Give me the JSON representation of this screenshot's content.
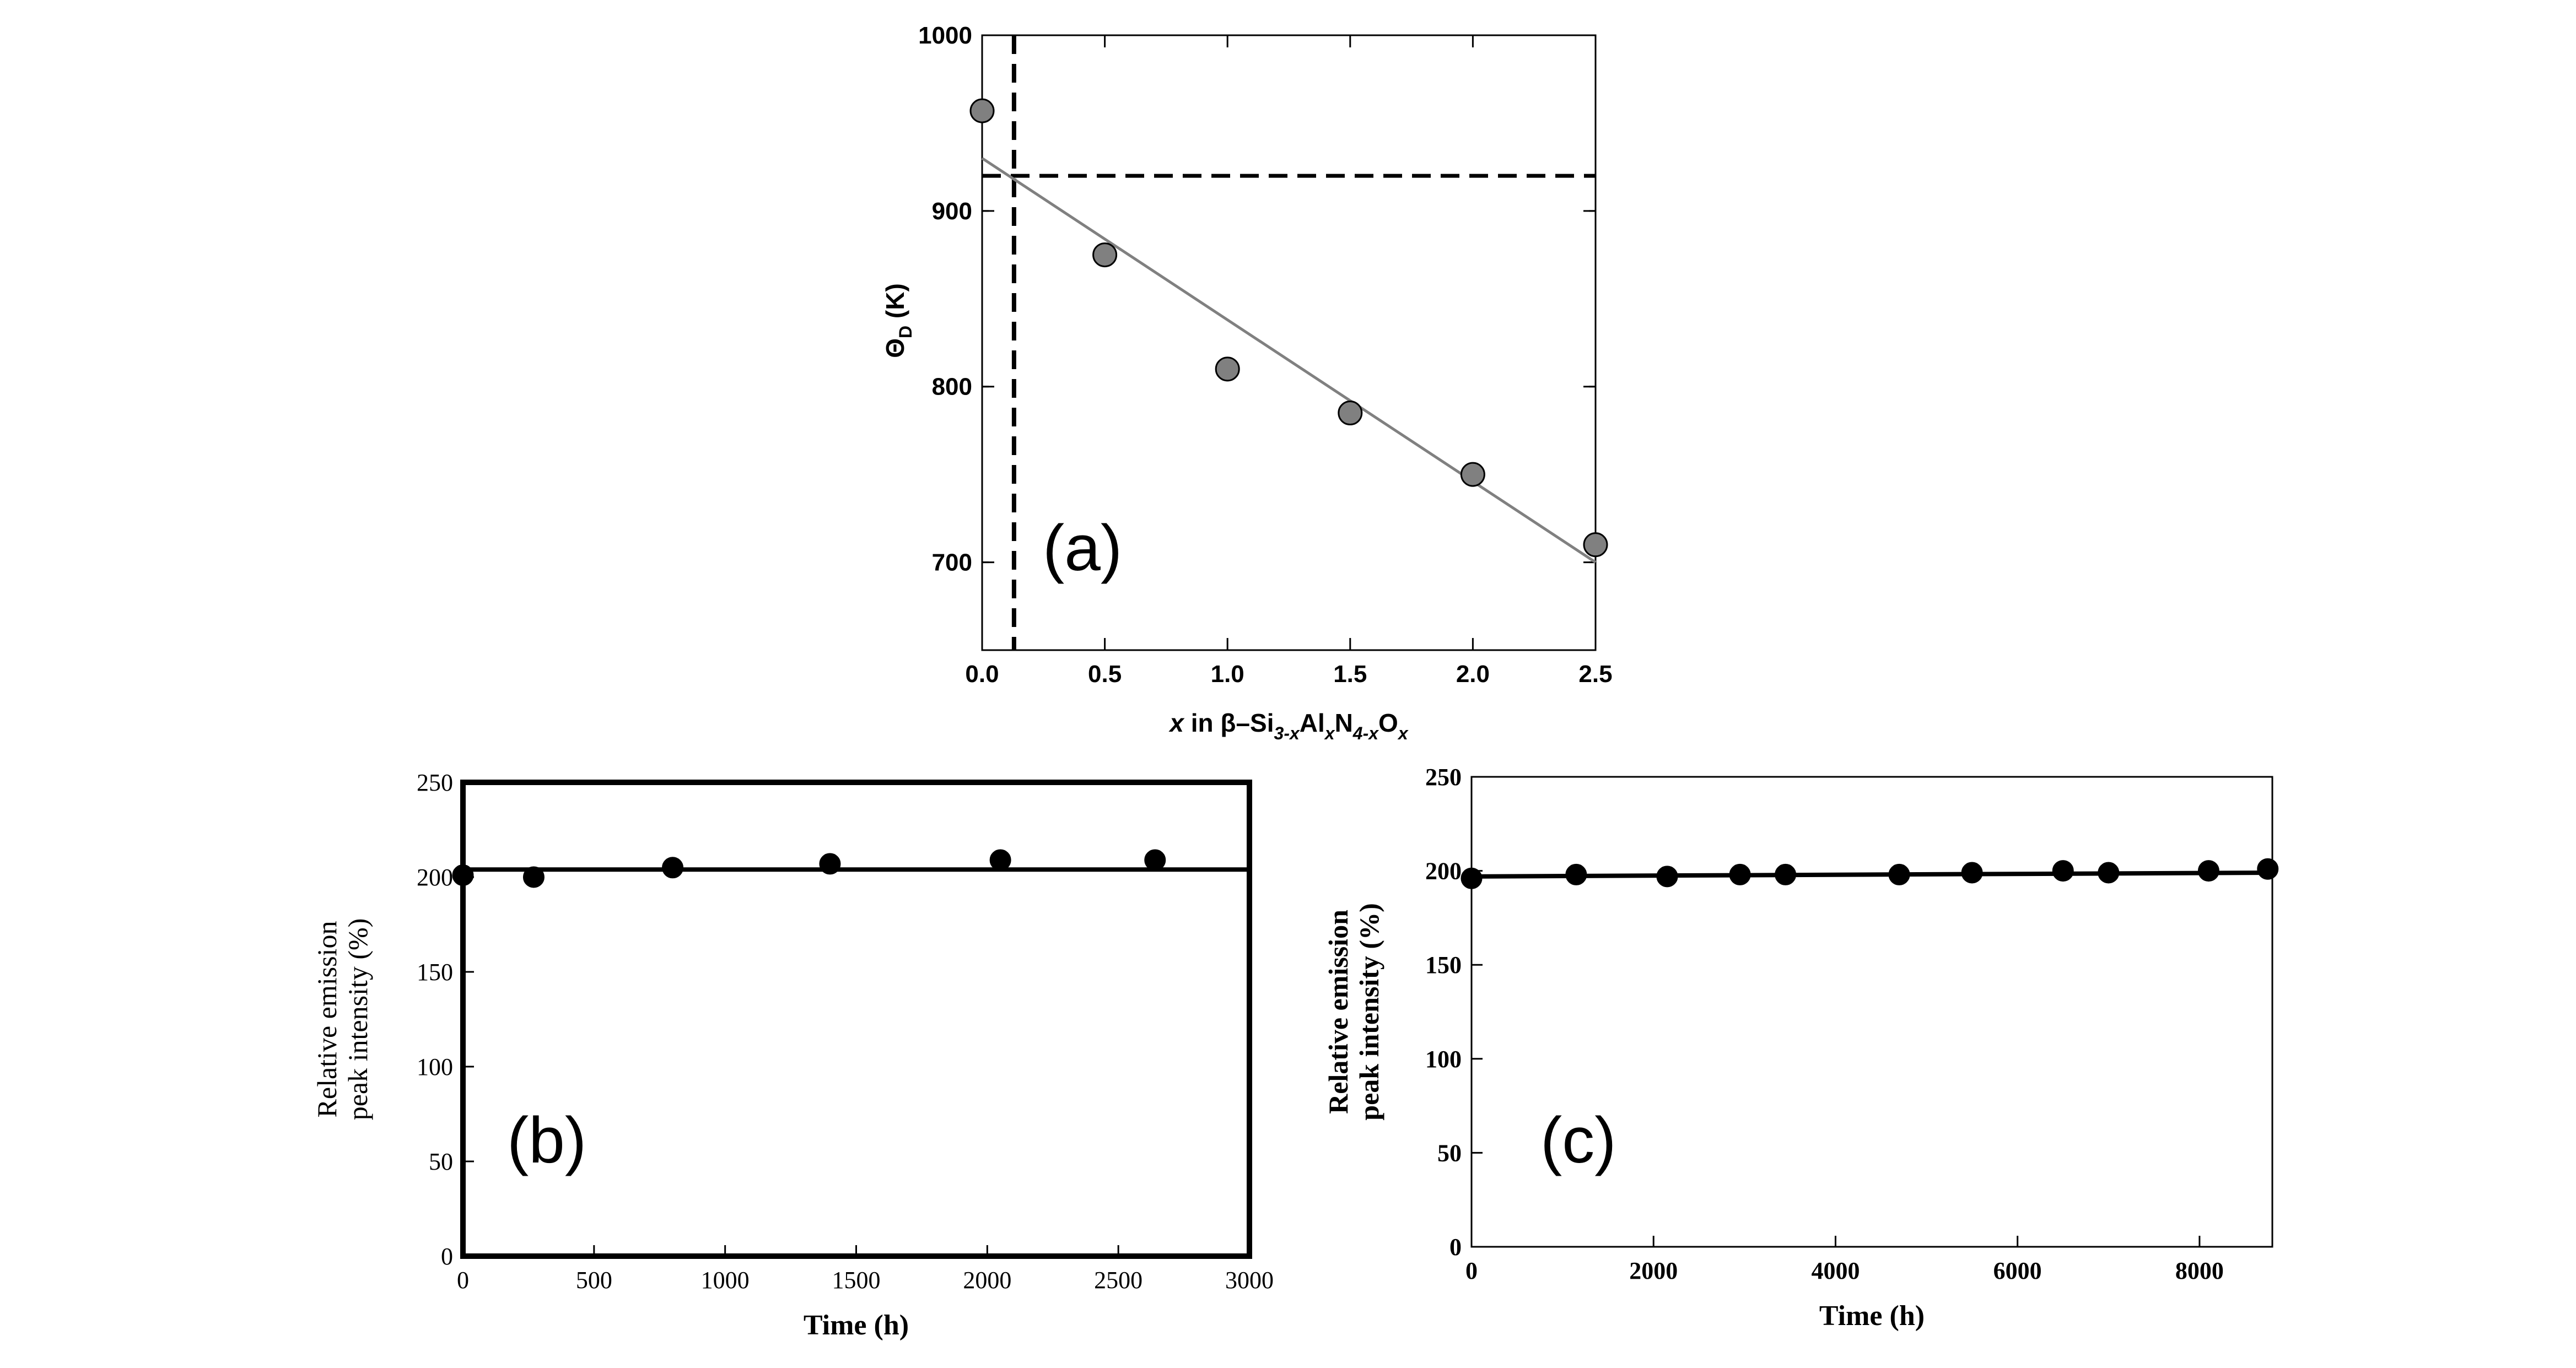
{
  "chart_data": [
    {
      "id": "a",
      "type": "scatter",
      "panel_label": "(a)",
      "ylabel_symbol": "Θ",
      "ylabel_sub": "D",
      "ylabel_unit": "(K)",
      "xlabel_parts": [
        {
          "t": "x",
          "style": "italic"
        },
        {
          "t": " in β–Si",
          "style": "normal"
        },
        {
          "t": "3-x",
          "style": "sub"
        },
        {
          "t": "Al",
          "style": "normal"
        },
        {
          "t": "x",
          "style": "sub"
        },
        {
          "t": "N",
          "style": "normal"
        },
        {
          "t": "4-x",
          "style": "sub"
        },
        {
          "t": "O",
          "style": "normal"
        },
        {
          "t": "x",
          "style": "sub"
        }
      ],
      "xlim": [
        0,
        2.5
      ],
      "ylim": [
        650,
        1000
      ],
      "xticks": [
        "0.0",
        "0.5",
        "1.0",
        "1.5",
        "2.0",
        "2.5"
      ],
      "yticks": [
        "700",
        "800",
        "900",
        "1000"
      ],
      "points": {
        "x": [
          0.0,
          0.5,
          1.0,
          1.5,
          2.0,
          2.5
        ],
        "y": [
          957,
          875,
          810,
          785,
          750,
          710
        ]
      },
      "fit_line": {
        "x": [
          0.0,
          2.5
        ],
        "y": [
          930,
          700
        ]
      },
      "dashed_vertical_x": 0.13,
      "dashed_horizontal_y": 920,
      "colors": {
        "marker": "#808080",
        "fit": "#808080"
      }
    },
    {
      "id": "b",
      "type": "scatter",
      "panel_label": "(b)",
      "ylabel_lines": [
        "Relative  emission",
        "peak intensity (%)"
      ],
      "xlabel": "Time (h)",
      "xlim": [
        0,
        3000
      ],
      "ylim": [
        0,
        250
      ],
      "xticks": [
        "0",
        "500",
        "1000",
        "1500",
        "2000",
        "2500",
        "3000"
      ],
      "yticks": [
        "0",
        "50",
        "100",
        "150",
        "200",
        "250"
      ],
      "points": {
        "x": [
          0,
          270,
          800,
          1400,
          2050,
          2640
        ],
        "y": [
          201,
          200,
          205,
          207,
          209,
          209
        ]
      },
      "fit_line": {
        "x": [
          0,
          3000
        ],
        "y": [
          204,
          204
        ]
      },
      "colors": {
        "marker": "#000000",
        "fit": "#000000"
      }
    },
    {
      "id": "c",
      "type": "scatter",
      "panel_label": "(c)",
      "ylabel_lines": [
        "Relative  emission",
        "peak intensity (%)"
      ],
      "xlabel": "Time (h)",
      "xlim": [
        0,
        8800
      ],
      "ylim": [
        0,
        250
      ],
      "xticks": [
        "0",
        "2000",
        "4000",
        "6000",
        "8000"
      ],
      "yticks": [
        "0",
        "50",
        "100",
        "150",
        "200",
        "250"
      ],
      "points": {
        "x": [
          0,
          1150,
          2150,
          2950,
          3450,
          4700,
          5500,
          6500,
          7000,
          8100,
          8750
        ],
        "y": [
          196,
          198,
          197,
          198,
          198,
          198,
          199,
          200,
          199,
          200,
          201
        ]
      },
      "fit_line": {
        "x": [
          0,
          8800
        ],
        "y": [
          197,
          199
        ]
      },
      "colors": {
        "marker": "#000000",
        "fit": "#000000"
      }
    }
  ]
}
